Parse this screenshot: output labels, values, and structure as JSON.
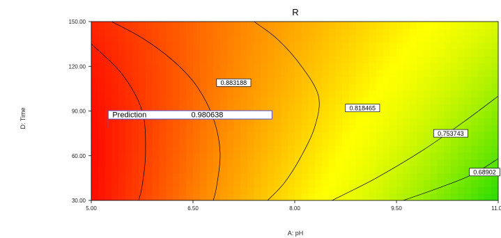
{
  "chart_data": {
    "type": "contour",
    "title": "R",
    "xlabel": "A: pH",
    "ylabel": "D: Time",
    "xlim": [
      5.0,
      11.0
    ],
    "ylim": [
      30.0,
      150.0
    ],
    "x_ticks": [
      "5.00",
      "6.50",
      "8.00",
      "9.50",
      "11.00"
    ],
    "y_ticks": [
      "30.00",
      "60.00",
      "90.00",
      "120.00",
      "150.00"
    ],
    "colors": {
      "high": "#ff0000",
      "mid": "#ffff00",
      "low": "#33dd00"
    },
    "contours": [
      {
        "level": "0.883188",
        "label_at": {
          "x": 7.1,
          "y": 109
        },
        "points": [
          [
            5.3,
            150
          ],
          [
            5.75,
            139
          ],
          [
            6.2,
            124
          ],
          [
            6.55,
            107
          ],
          [
            6.8,
            85
          ],
          [
            6.9,
            62
          ],
          [
            6.85,
            40
          ],
          [
            6.8,
            30
          ]
        ]
      },
      {
        "level": "0.818465",
        "label_at": {
          "x": 9.0,
          "y": 92
        },
        "points": [
          [
            7.4,
            150
          ],
          [
            7.75,
            138
          ],
          [
            8.1,
            120
          ],
          [
            8.35,
            100
          ],
          [
            8.3,
            80
          ],
          [
            8.1,
            60
          ],
          [
            7.85,
            42
          ],
          [
            7.6,
            30
          ]
        ]
      },
      {
        "level": "0.753743",
        "label_at": {
          "x": 10.3,
          "y": 75
        },
        "points": [
          [
            8.55,
            30
          ],
          [
            9.2,
            45
          ],
          [
            9.9,
            64
          ],
          [
            10.5,
            83
          ],
          [
            11.0,
            100
          ]
        ]
      },
      {
        "level": "0.68902",
        "label_at": {
          "x": 10.8,
          "y": 49
        },
        "points": [
          [
            9.6,
            30
          ],
          [
            10.1,
            38
          ],
          [
            10.6,
            47
          ],
          [
            11.0,
            58
          ]
        ]
      },
      {
        "level": "",
        "label_at": null,
        "points": [
          [
            5.0,
            135
          ],
          [
            5.45,
            115
          ],
          [
            5.75,
            90
          ],
          [
            5.8,
            62
          ],
          [
            5.75,
            40
          ],
          [
            5.7,
            30
          ]
        ]
      }
    ],
    "prediction": {
      "label": "Prediction",
      "value": "0.980638",
      "x": 5.25,
      "y": 79
    }
  }
}
